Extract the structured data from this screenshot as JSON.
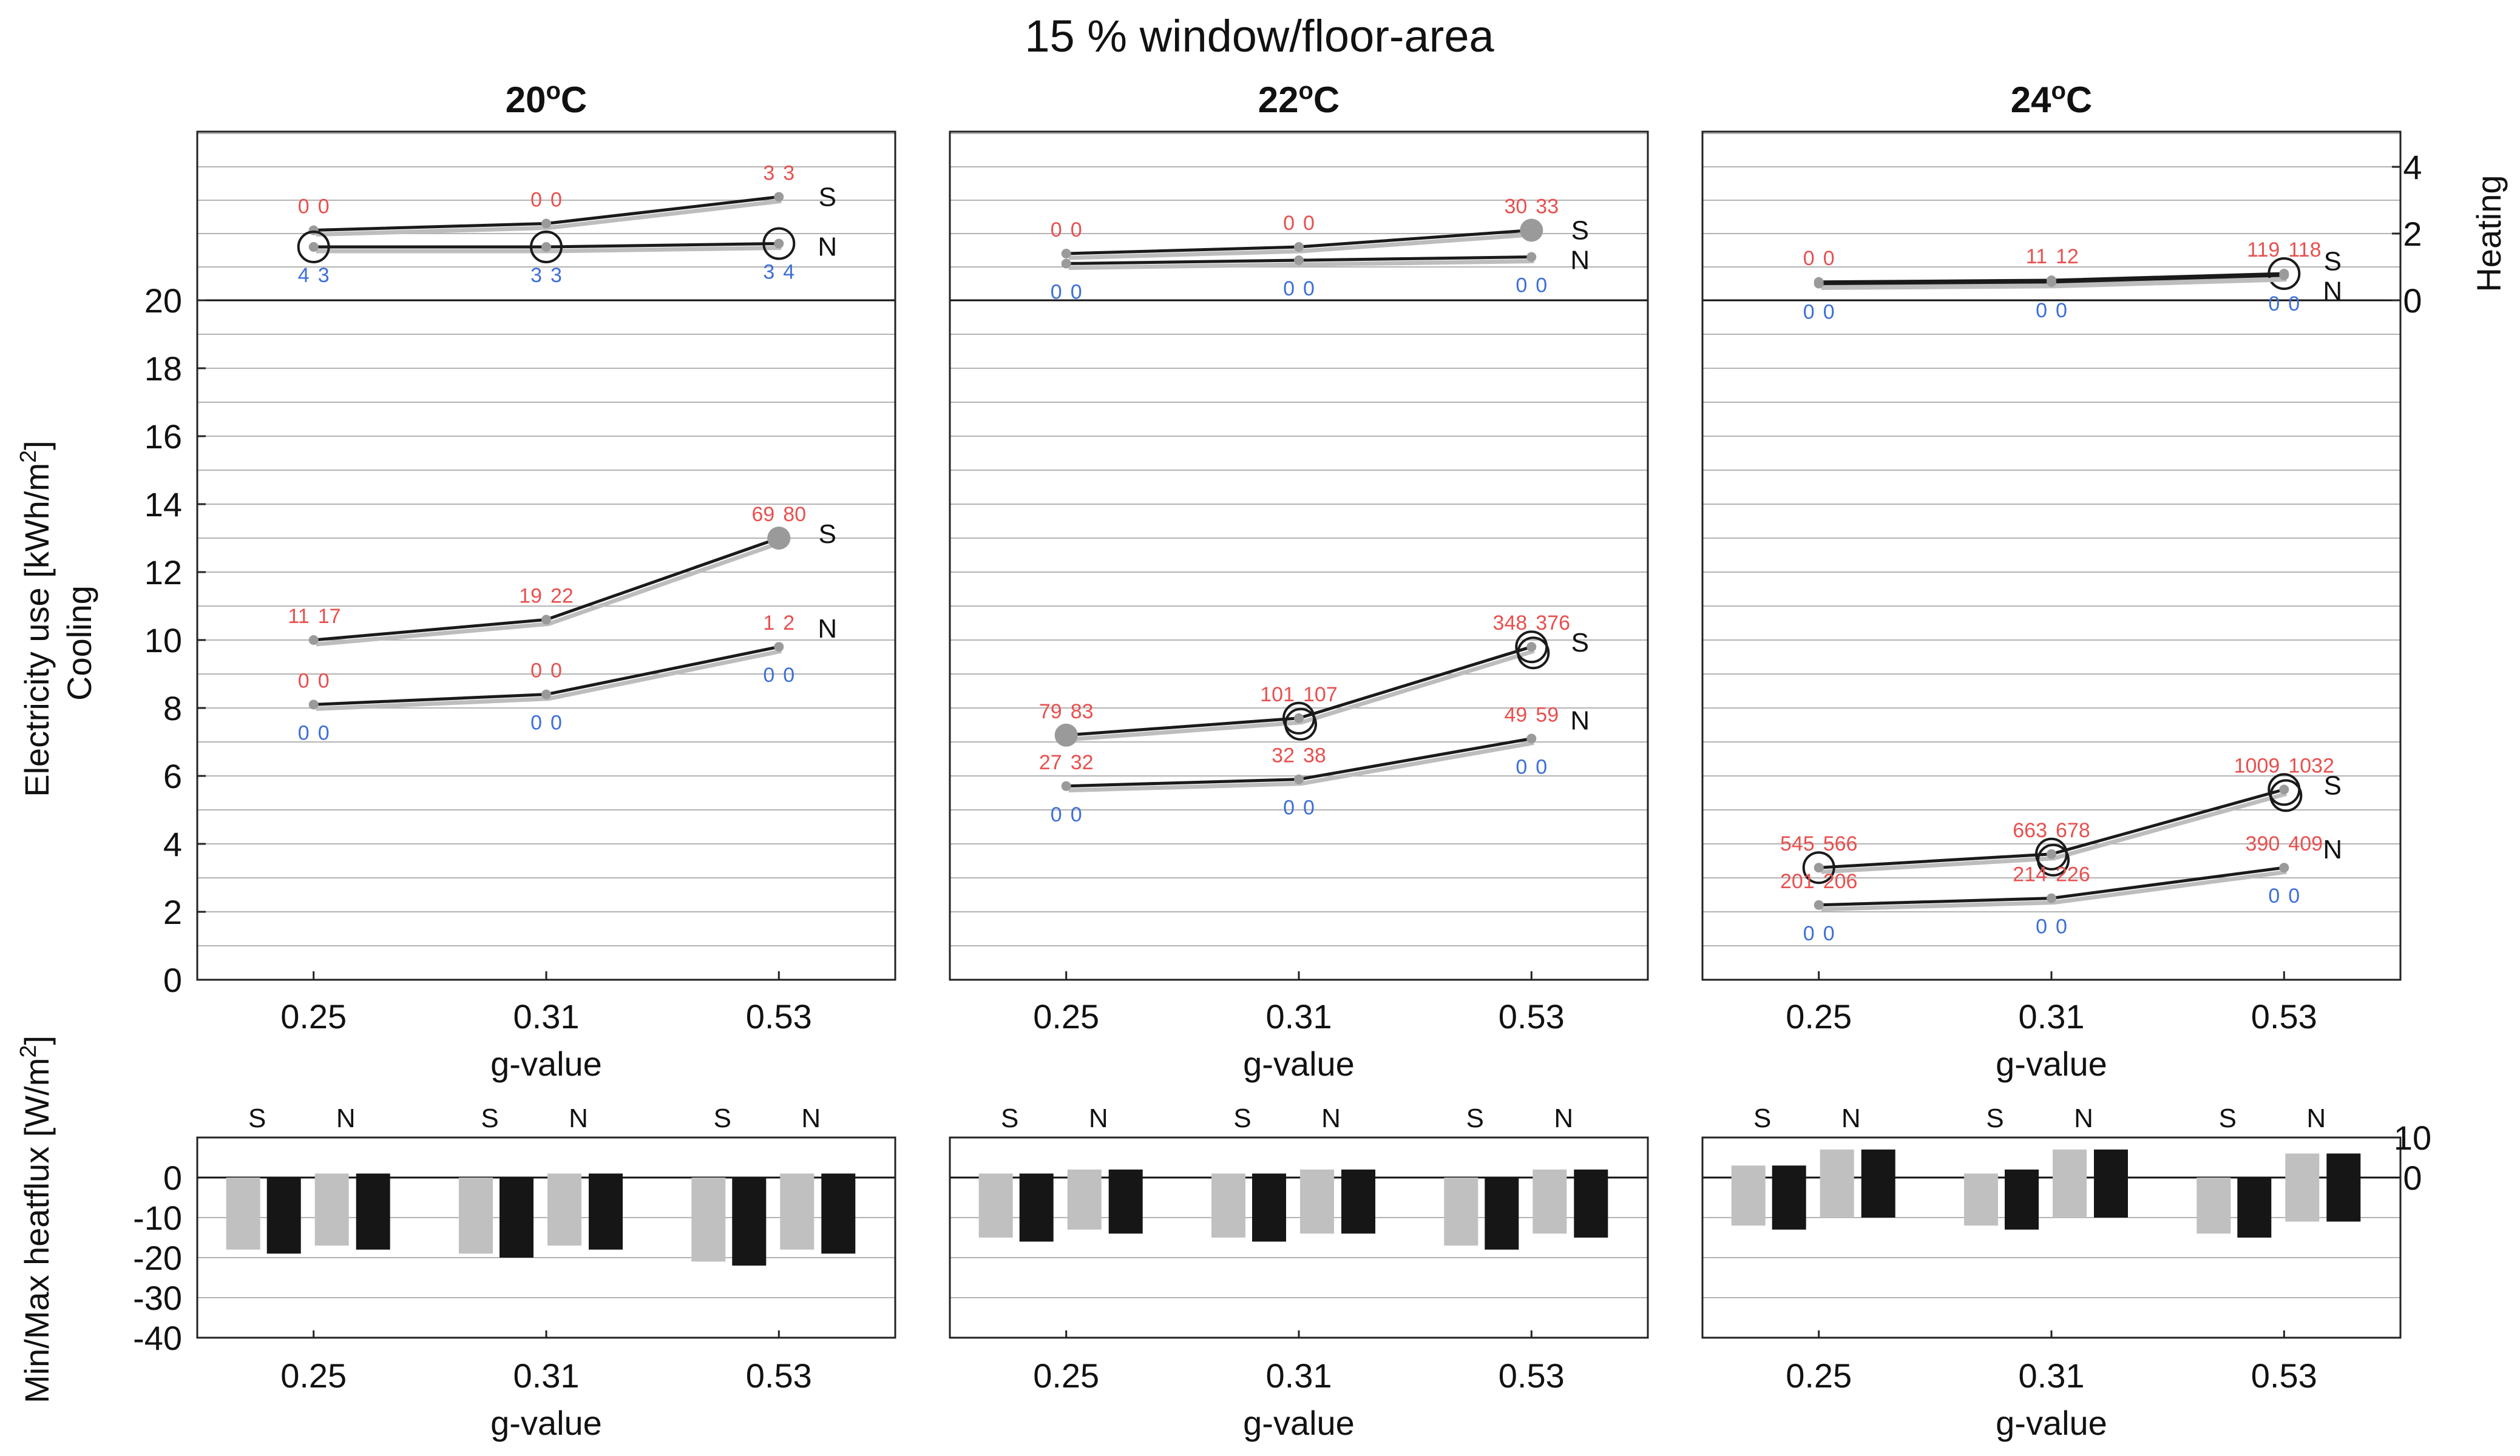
{
  "figure_title": "15 % window/floor-area",
  "ylabel_upper": "Electricity use [kWh/m",
  "ylabel_upper_sup": "2",
  "ylabel_upper_close": "]",
  "ylabel_cooling": "Cooling",
  "ylabel_heating": "Heating",
  "ylabel_lower": "Min/Max heatflux [W/m",
  "ylabel_lower_sup": "2",
  "ylabel_lower_close": "]",
  "xlabel": "g-value",
  "colors": {
    "line": "#1a1a1a",
    "line_shadow": "#bdbdbd",
    "marker": "#9a9a9a",
    "red_label": "#e8504f",
    "blue_label": "#3d6fd9",
    "bar_light": "#c0c0c0",
    "bar_dark": "#161616",
    "grid": "#b3b3b3"
  },
  "chart_data": {
    "type": "line",
    "x_categories": [
      "0.25",
      "0.31",
      "0.53"
    ],
    "cooling_axis": {
      "ylim": [
        0,
        20
      ],
      "ticks": [
        "0",
        "2",
        "4",
        "6",
        "8",
        "10",
        "12",
        "14",
        "16",
        "18",
        "20"
      ]
    },
    "heating_axis": {
      "ylim": [
        0,
        5
      ],
      "ticks": [
        "0",
        "2",
        "4"
      ]
    },
    "heatflux_axis": {
      "ylim": [
        -40,
        10
      ],
      "ticks": [
        "-40",
        "-30",
        "-20",
        "-10",
        "0"
      ],
      "right_ticks": [
        "10",
        "0"
      ]
    },
    "panels": [
      {
        "title": "20",
        "title_unit": "C",
        "heating": {
          "S": {
            "values": [
              2.1,
              2.3,
              3.1
            ],
            "red": [
              [
                "0",
                "0"
              ],
              [
                "0",
                "0"
              ],
              [
                "3",
                "3"
              ]
            ],
            "blue": [],
            "circles": [],
            "filled": []
          },
          "N": {
            "values": [
              1.6,
              1.6,
              1.7
            ],
            "red": [],
            "blue": [
              [
                "4",
                "3"
              ],
              [
                "3",
                "3"
              ],
              [
                "3",
                "4"
              ]
            ],
            "circles": [
              1,
              1,
              1
            ],
            "filled": []
          }
        },
        "cooling": {
          "S": {
            "values": [
              10.0,
              10.6,
              13.0
            ],
            "red": [
              [
                "11",
                "17"
              ],
              [
                "19",
                "22"
              ],
              [
                "69",
                "80"
              ]
            ],
            "blue": [],
            "circles": [],
            "filled": [
              0,
              0,
              1
            ]
          },
          "N": {
            "values": [
              8.1,
              8.4,
              9.8
            ],
            "red": [
              [
                "0",
                "0"
              ],
              [
                "0",
                "0"
              ],
              [
                "1",
                "2"
              ]
            ],
            "blue": [
              [
                "0",
                "0"
              ],
              [
                "0",
                "0"
              ],
              [
                "0",
                "0"
              ]
            ],
            "circles": [],
            "filled": []
          }
        },
        "heatflux": [
          {
            "S_min": [
              -18,
              -19
            ],
            "S_max": [
              0,
              0
            ],
            "N_min": [
              -17,
              -18
            ],
            "N_max": [
              1,
              1
            ]
          },
          {
            "S_min": [
              -19,
              -20
            ],
            "S_max": [
              0,
              0
            ],
            "N_min": [
              -17,
              -18
            ],
            "N_max": [
              1,
              1
            ]
          },
          {
            "S_min": [
              -21,
              -22
            ],
            "S_max": [
              0,
              0
            ],
            "N_min": [
              -18,
              -19
            ],
            "N_max": [
              1,
              1
            ]
          }
        ]
      },
      {
        "title": "22",
        "title_unit": "C",
        "heating": {
          "S": {
            "values": [
              1.4,
              1.6,
              2.1
            ],
            "red": [
              [
                "0",
                "0"
              ],
              [
                "0",
                "0"
              ],
              [
                "30",
                "33"
              ]
            ],
            "blue": [],
            "circles": [],
            "filled": [
              0,
              0,
              1
            ]
          },
          "N": {
            "values": [
              1.1,
              1.2,
              1.3
            ],
            "red": [],
            "blue": [
              [
                "0",
                "0"
              ],
              [
                "0",
                "0"
              ],
              [
                "0",
                "0"
              ]
            ],
            "circles": [],
            "filled": []
          }
        },
        "cooling": {
          "S": {
            "values": [
              7.2,
              7.7,
              9.8
            ],
            "red": [
              [
                "79",
                "83"
              ],
              [
                "101",
                "107"
              ],
              [
                "348",
                "376"
              ]
            ],
            "blue": [],
            "circles": [
              0,
              2,
              2
            ],
            "filled": [
              1,
              0,
              0
            ]
          },
          "N": {
            "values": [
              5.7,
              5.9,
              7.1
            ],
            "red": [
              [
                "27",
                "32"
              ],
              [
                "32",
                "38"
              ],
              [
                "49",
                "59"
              ]
            ],
            "blue": [
              [
                "0",
                "0"
              ],
              [
                "0",
                "0"
              ],
              [
                "0",
                "0"
              ]
            ],
            "circles": [],
            "filled": []
          }
        },
        "heatflux": [
          {
            "S_min": [
              -15,
              -16
            ],
            "S_max": [
              1,
              1
            ],
            "N_min": [
              -13,
              -14
            ],
            "N_max": [
              2,
              2
            ]
          },
          {
            "S_min": [
              -15,
              -16
            ],
            "S_max": [
              1,
              1
            ],
            "N_min": [
              -14,
              -14
            ],
            "N_max": [
              2,
              2
            ]
          },
          {
            "S_min": [
              -17,
              -18
            ],
            "S_max": [
              0,
              0
            ],
            "N_min": [
              -14,
              -15
            ],
            "N_max": [
              2,
              2
            ]
          }
        ]
      },
      {
        "title": "24",
        "title_unit": "C",
        "heating": {
          "S": {
            "values": [
              0.55,
              0.6,
              0.8
            ],
            "red": [
              [
                "0",
                "0"
              ],
              [
                "11",
                "12"
              ],
              [
                "119",
                "118"
              ]
            ],
            "blue": [],
            "circles": [
              0,
              0,
              1
            ],
            "filled": []
          },
          "N": {
            "values": [
              0.5,
              0.55,
              0.75
            ],
            "red": [],
            "blue": [
              [
                "0",
                "0"
              ],
              [
                "0",
                "0"
              ],
              [
                "0",
                "0"
              ]
            ],
            "circles": [],
            "filled": []
          }
        },
        "cooling": {
          "S": {
            "values": [
              3.3,
              3.7,
              5.6
            ],
            "red": [
              [
                "545",
                "566"
              ],
              [
                "663",
                "678"
              ],
              [
                "1009",
                "1032"
              ]
            ],
            "blue": [],
            "circles": [
              1,
              2,
              2
            ],
            "filled": []
          },
          "N": {
            "values": [
              2.2,
              2.4,
              3.3
            ],
            "red": [
              [
                "201",
                "206"
              ],
              [
                "214",
                "226"
              ],
              [
                "390",
                "409"
              ]
            ],
            "blue": [
              [
                "0",
                "0"
              ],
              [
                "0",
                "0"
              ],
              [
                "0",
                "0"
              ]
            ],
            "circles": [],
            "filled": []
          }
        },
        "heatflux": [
          {
            "S_min": [
              -12,
              -13
            ],
            "S_max": [
              3,
              3
            ],
            "N_min": [
              -10,
              -10
            ],
            "N_max": [
              7,
              7
            ]
          },
          {
            "S_min": [
              -12,
              -13
            ],
            "S_max": [
              1,
              2
            ],
            "N_min": [
              -10,
              -10
            ],
            "N_max": [
              7,
              7
            ]
          },
          {
            "S_min": [
              -14,
              -15
            ],
            "S_max": [
              0,
              0
            ],
            "N_min": [
              -11,
              -11
            ],
            "N_max": [
              6,
              6
            ]
          }
        ]
      }
    ]
  }
}
